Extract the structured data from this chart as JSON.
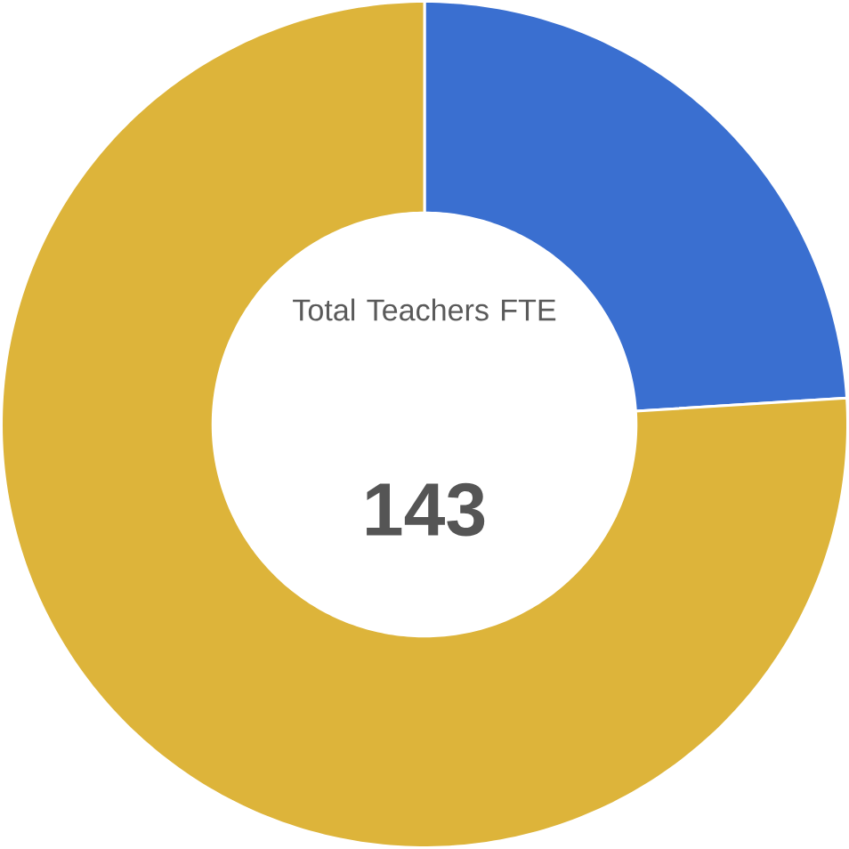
{
  "chart_data": {
    "type": "donut",
    "title": "Total Teachers FTE",
    "annotations": [
      "143"
    ],
    "categories": [
      null,
      null
    ],
    "values": [
      24,
      76
    ],
    "colors": [
      "#3a6fd0",
      "#ddb43a"
    ]
  }
}
